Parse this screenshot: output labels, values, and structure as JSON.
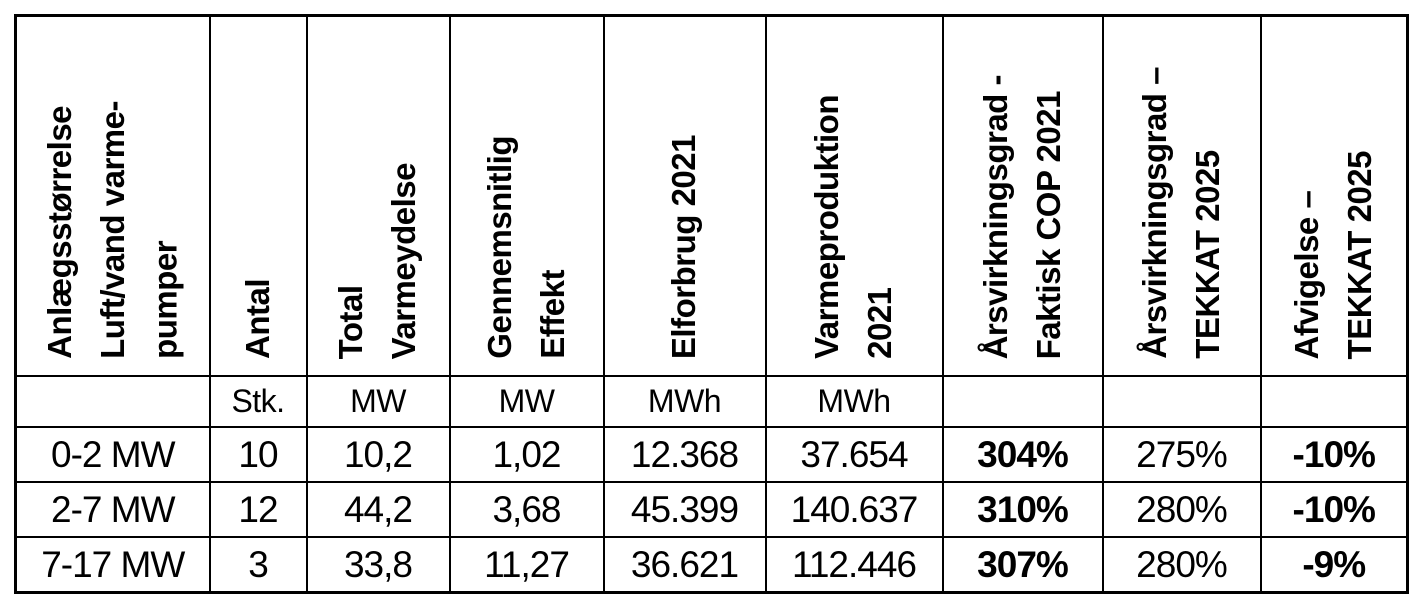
{
  "table": {
    "headers": [
      "Anlægsstørrelse\nLuft/vand varme-\npumper",
      "Antal",
      "Total\nVarmeydelse",
      "Gennemsnitlig\nEffekt",
      "Elforbrug 2021",
      "Varmeproduktion\n2021",
      "Årsvirkningsgrad -\nFaktisk COP 2021",
      "Årsvirkningsgrad –\nTEKKAT 2025",
      "Afvigelse –\nTEKKAT 2025"
    ],
    "units": [
      "",
      "Stk.",
      "MW",
      "MW",
      "MWh",
      "MWh",
      "",
      "",
      ""
    ],
    "rows": [
      [
        "0-2 MW",
        "10",
        "10,2",
        "1,02",
        "12.368",
        "37.654",
        "304%",
        "275%",
        "-10%"
      ],
      [
        "2-7 MW",
        "12",
        "44,2",
        "3,68",
        "45.399",
        "140.637",
        "310%",
        "280%",
        "-10%"
      ],
      [
        "7-17 MW",
        "3",
        "33,8",
        "11,27",
        "36.621",
        "112.446",
        "307%",
        "280%",
        "-9%"
      ]
    ]
  },
  "colors": {
    "border": "#000000",
    "text": "#000000",
    "page_background": "#ffffff"
  }
}
